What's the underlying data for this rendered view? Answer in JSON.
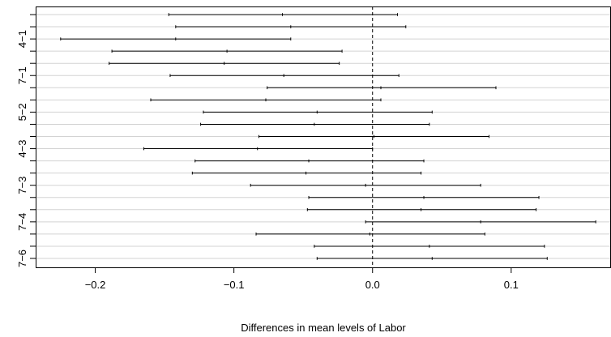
{
  "chart_data": {
    "type": "errorbar",
    "title": "",
    "xlabel": "Differences in mean levels of Labor",
    "ylabel": "",
    "xlim": [
      -0.243,
      0.172
    ],
    "xticks": [
      -0.2,
      -0.1,
      0.0,
      0.1
    ],
    "x_tick_labels": [
      "−0.2",
      "−0.1",
      "0.0",
      "0.1"
    ],
    "y_tick_labels_shown": [
      "4−1",
      "7−1",
      "5−2",
      "4−3",
      "7−3",
      "7−4",
      "7−6"
    ],
    "reference_line_x": 0,
    "grid": "horizontal",
    "intervals": [
      {
        "label": "",
        "lwr": -0.147,
        "estimate": -0.065,
        "upr": 0.018
      },
      {
        "label": "",
        "lwr": -0.142,
        "estimate": -0.059,
        "upr": 0.024
      },
      {
        "label": "4−1",
        "lwr": -0.225,
        "estimate": -0.142,
        "upr": -0.059
      },
      {
        "label": "",
        "lwr": -0.188,
        "estimate": -0.105,
        "upr": -0.022
      },
      {
        "label": "",
        "lwr": -0.19,
        "estimate": -0.107,
        "upr": -0.024
      },
      {
        "label": "7−1",
        "lwr": -0.146,
        "estimate": -0.064,
        "upr": 0.019
      },
      {
        "label": "",
        "lwr": -0.076,
        "estimate": 0.006,
        "upr": 0.089
      },
      {
        "label": "",
        "lwr": -0.16,
        "estimate": -0.077,
        "upr": 0.006
      },
      {
        "label": "5−2",
        "lwr": -0.122,
        "estimate": -0.04,
        "upr": 0.043
      },
      {
        "label": "",
        "lwr": -0.124,
        "estimate": -0.042,
        "upr": 0.041
      },
      {
        "label": "",
        "lwr": -0.082,
        "estimate": 0.001,
        "upr": 0.084
      },
      {
        "label": "4−3",
        "lwr": -0.165,
        "estimate": -0.083,
        "upr": 0.0
      },
      {
        "label": "",
        "lwr": -0.128,
        "estimate": -0.046,
        "upr": 0.037
      },
      {
        "label": "",
        "lwr": -0.13,
        "estimate": -0.048,
        "upr": 0.035
      },
      {
        "label": "7−3",
        "lwr": -0.088,
        "estimate": -0.005,
        "upr": 0.078
      },
      {
        "label": "",
        "lwr": -0.046,
        "estimate": 0.037,
        "upr": 0.12
      },
      {
        "label": "",
        "lwr": -0.047,
        "estimate": 0.035,
        "upr": 0.118
      },
      {
        "label": "7−4",
        "lwr": -0.005,
        "estimate": 0.078,
        "upr": 0.161
      },
      {
        "label": "",
        "lwr": -0.084,
        "estimate": -0.002,
        "upr": 0.081
      },
      {
        "label": "",
        "lwr": -0.042,
        "estimate": 0.041,
        "upr": 0.124
      },
      {
        "label": "7−6",
        "lwr": -0.04,
        "estimate": 0.043,
        "upr": 0.126
      }
    ]
  }
}
